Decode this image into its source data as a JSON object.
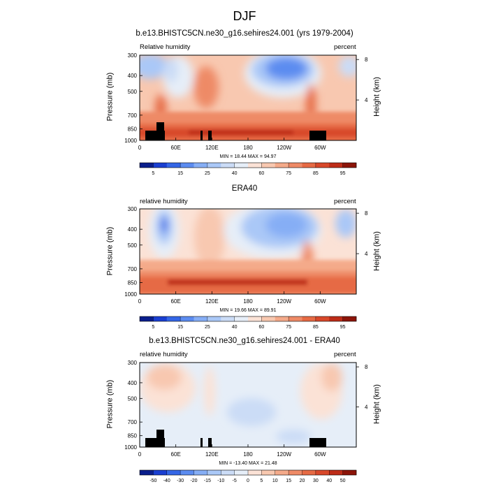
{
  "page_title": "DJF",
  "chart_data": [
    {
      "type": "heatmap",
      "title": "b.e13.BHISTC5CN.ne30_g16.sehires24.001 (yrs 1979-2004)",
      "left_label": "Relative humidity",
      "right_label": "percent",
      "xlabel": "",
      "ylabel": "Pressure (mb)",
      "y2label": "Height (km)",
      "x_ticks": [
        "0",
        "60E",
        "120E",
        "180",
        "120W",
        "60W"
      ],
      "y_ticks": [
        "300",
        "400",
        "500",
        "700",
        "850",
        "1000"
      ],
      "y2_ticks": [
        "8",
        "4"
      ],
      "stats": "MIN = 18.44  MAX = 94.97",
      "colorbar_labels": [
        "5",
        "15",
        "25",
        "40",
        "60",
        "75",
        "85",
        "95"
      ],
      "colorbar_colors": [
        "#0a1e8c",
        "#1a3fd1",
        "#3466e6",
        "#5c8cf0",
        "#86aef5",
        "#aac8f7",
        "#cbdcf6",
        "#e6eef8",
        "#fbe2d6",
        "#f8c8b0",
        "#f4aa8a",
        "#ee8a66",
        "#e66a44",
        "#d8482a",
        "#bd2c18",
        "#8c1409"
      ],
      "min": 18.44,
      "max": 94.97,
      "yscale": "log-pressure",
      "grid": false,
      "terrain": true
    },
    {
      "type": "heatmap",
      "title": "ERA40",
      "left_label": "relative humidity",
      "right_label": "percent",
      "xlabel": "",
      "ylabel": "Pressure (mb)",
      "y2label": "Height (km)",
      "x_ticks": [
        "0",
        "60E",
        "120E",
        "180",
        "120W",
        "60W"
      ],
      "y_ticks": [
        "300",
        "400",
        "500",
        "700",
        "850",
        "1000"
      ],
      "y2_ticks": [
        "8",
        "4"
      ],
      "stats": "MIN = 19.66  MAX = 89.91",
      "colorbar_labels": [
        "5",
        "15",
        "25",
        "40",
        "60",
        "75",
        "85",
        "95"
      ],
      "colorbar_colors": [
        "#0a1e8c",
        "#1a3fd1",
        "#3466e6",
        "#5c8cf0",
        "#86aef5",
        "#aac8f7",
        "#cbdcf6",
        "#e6eef8",
        "#fbe2d6",
        "#f8c8b0",
        "#f4aa8a",
        "#ee8a66",
        "#e66a44",
        "#d8482a",
        "#bd2c18",
        "#8c1409"
      ],
      "min": 19.66,
      "max": 89.91,
      "yscale": "log-pressure",
      "grid": false,
      "terrain": false
    },
    {
      "type": "heatmap",
      "title": "b.e13.BHISTC5CN.ne30_g16.sehires24.001 - ERA40",
      "left_label": "relative humidity",
      "right_label": "percent",
      "xlabel": "",
      "ylabel": "Pressure (mb)",
      "y2label": "Height (km)",
      "x_ticks": [
        "0",
        "60E",
        "120E",
        "180",
        "120W",
        "60W"
      ],
      "y_ticks": [
        "300",
        "400",
        "500",
        "700",
        "850",
        "1000"
      ],
      "y2_ticks": [
        "8",
        "4"
      ],
      "stats": "MIN = -13.40  MAX = 21.48",
      "colorbar_labels": [
        "-50",
        "-40",
        "-30",
        "-20",
        "-15",
        "-10",
        "-5",
        "0",
        "5",
        "10",
        "15",
        "20",
        "30",
        "40",
        "50"
      ],
      "colorbar_colors": [
        "#0a1e8c",
        "#1a3fd1",
        "#3466e6",
        "#5c8cf0",
        "#86aef5",
        "#aac8f7",
        "#cbdcf6",
        "#e6eef8",
        "#fbe2d6",
        "#f8c8b0",
        "#f4aa8a",
        "#ee8a66",
        "#e66a44",
        "#d8482a",
        "#bd2c18",
        "#8c1409"
      ],
      "min": -13.4,
      "max": 21.48,
      "yscale": "log-pressure",
      "grid": false,
      "terrain": true
    }
  ]
}
